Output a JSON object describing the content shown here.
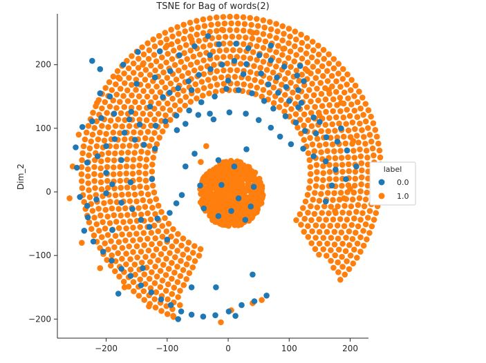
{
  "chart_data": {
    "type": "scatter",
    "title": "TSNE for Bag of words(2)",
    "xlabel": "",
    "ylabel": "Dim_2",
    "xlim": [
      -280,
      230
    ],
    "ylim": [
      -230,
      280
    ],
    "xticks": [
      -200,
      -100,
      0,
      100,
      200
    ],
    "yticks": [
      -200,
      -100,
      0,
      100,
      200
    ],
    "x_tick_labels": [
      "−200",
      "−100",
      "0",
      "100",
      "200"
    ],
    "y_tick_labels": [
      "−200",
      "−100",
      "0",
      "100",
      "200"
    ],
    "grid": false,
    "legend": {
      "title": "label",
      "placement": "center-right outside",
      "entries": [
        {
          "name": "0.0",
          "color": "#1f77b4"
        },
        {
          "name": "1.0",
          "color": "#ff7f0e"
        }
      ]
    },
    "series": [
      {
        "name": "0.0",
        "color": "#1f77b4",
        "points": [
          [
            -223,
            206
          ],
          [
            -210,
            193
          ],
          [
            -172,
            200
          ],
          [
            -148,
            220
          ],
          [
            -112,
            221
          ],
          [
            -55,
            229
          ],
          [
            -33,
            245
          ],
          [
            -15,
            232
          ],
          [
            13,
            233
          ],
          [
            33,
            226
          ],
          [
            51,
            215
          ],
          [
            70,
            207
          ],
          [
            92,
            197
          ],
          [
            113,
            183
          ],
          [
            124,
            174
          ],
          [
            118,
            198
          ],
          [
            -210,
            155
          ],
          [
            -194,
            150
          ],
          [
            -159,
            126
          ],
          [
            -128,
            134
          ],
          [
            -107,
            149
          ],
          [
            -96,
            156
          ],
          [
            -82,
            163
          ],
          [
            -65,
            174
          ],
          [
            -48,
            184
          ],
          [
            -29,
            193
          ],
          [
            -10,
            200
          ],
          [
            10,
            206
          ],
          [
            30,
            201
          ],
          [
            54,
            186
          ],
          [
            66,
            169
          ],
          [
            82,
            156
          ],
          [
            100,
            143
          ],
          [
            115,
            133
          ],
          [
            140,
            117
          ],
          [
            -239,
            102
          ],
          [
            -223,
            111
          ],
          [
            -208,
            116
          ],
          [
            -187,
            123
          ],
          [
            -162,
            114
          ],
          [
            -145,
            106
          ],
          [
            -119,
            104
          ],
          [
            -103,
            111
          ],
          [
            -85,
            120
          ],
          [
            -64,
            128
          ],
          [
            -44,
            141
          ],
          [
            -22,
            150
          ],
          [
            -3,
            162
          ],
          [
            17,
            160
          ],
          [
            39,
            155
          ],
          [
            59,
            143
          ],
          [
            74,
            131
          ],
          [
            94,
            119
          ],
          [
            111,
            109
          ],
          [
            126,
            96
          ],
          [
            144,
            92
          ],
          [
            161,
            86
          ],
          [
            179,
            79
          ],
          [
            195,
            65
          ],
          [
            -248,
            38
          ],
          [
            -231,
            46
          ],
          [
            -214,
            56
          ],
          [
            -200,
            72
          ],
          [
            -186,
            83
          ],
          [
            -170,
            93
          ],
          [
            -153,
            82
          ],
          [
            -138,
            74
          ],
          [
            -120,
            68
          ],
          [
            -84,
            97
          ],
          [
            -70,
            107
          ],
          [
            -49,
            121
          ],
          [
            -24,
            114
          ],
          [
            2,
            125
          ],
          [
            29,
            123
          ],
          [
            50,
            113
          ],
          [
            70,
            101
          ],
          [
            85,
            87
          ],
          [
            103,
            75
          ],
          [
            123,
            68
          ],
          [
            140,
            56
          ],
          [
            160,
            48
          ],
          [
            176,
            35
          ],
          [
            193,
            20
          ],
          [
            -243,
            -8
          ],
          [
            -231,
            -22
          ],
          [
            -216,
            -12
          ],
          [
            -200,
            -2
          ],
          [
            -190,
            12
          ],
          [
            -175,
            -17
          ],
          [
            -157,
            -27
          ],
          [
            -143,
            -44
          ],
          [
            -129,
            -55
          ],
          [
            -116,
            -42
          ],
          [
            -96,
            -33
          ],
          [
            -85,
            -18
          ],
          [
            -76,
            -5
          ],
          [
            -236,
            -61
          ],
          [
            -221,
            -78
          ],
          [
            -205,
            -94
          ],
          [
            -191,
            -108
          ],
          [
            -175,
            -121
          ],
          [
            -160,
            -132
          ],
          [
            -143,
            -147
          ],
          [
            -126,
            -158
          ],
          [
            -110,
            -169
          ],
          [
            -94,
            -178
          ],
          [
            -77,
            -188
          ],
          [
            -60,
            -193
          ],
          [
            -41,
            -196
          ],
          [
            -21,
            -194
          ],
          [
            1,
            -188
          ],
          [
            22,
            -178
          ],
          [
            43,
            -172
          ],
          [
            63,
            -163
          ],
          [
            12,
            -195
          ],
          [
            -82,
            -200
          ],
          [
            37,
            -23
          ],
          [
            42,
            8
          ],
          [
            -46,
            10
          ],
          [
            -40,
            -26
          ],
          [
            10,
            40
          ],
          [
            -16,
            -38
          ],
          [
            28,
            -44
          ],
          [
            -16,
            50
          ],
          [
            -60,
            160
          ],
          [
            -30,
            123
          ],
          [
            30,
            67
          ],
          [
            17,
            -10
          ],
          [
            -11,
            11
          ],
          [
            5,
            -30
          ],
          [
            160,
            -15
          ],
          [
            -190,
            -60
          ],
          [
            -200,
            30
          ],
          [
            -125,
            20
          ],
          [
            150,
            110
          ],
          [
            120,
            140
          ],
          [
            -150,
            170
          ],
          [
            70,
            230
          ],
          [
            -95,
            190
          ],
          [
            -180,
            -160
          ],
          [
            -140,
            -120
          ],
          [
            -100,
            -75
          ],
          [
            -60,
            -150
          ],
          [
            -20,
            -150
          ],
          [
            40,
            -130
          ],
          [
            185,
            100
          ],
          [
            170,
            10
          ],
          [
            210,
            40
          ],
          [
            -250,
            70
          ],
          [
            -230,
            -40
          ],
          [
            -55,
            60
          ],
          [
            -70,
            40
          ],
          [
            0,
            175
          ],
          [
            25,
            185
          ],
          [
            80,
            180
          ],
          [
            -120,
            180
          ],
          [
            -80,
            215
          ],
          [
            -30,
            215
          ],
          [
            95,
            165
          ],
          [
            115,
            160
          ],
          [
            -175,
            50
          ],
          [
            -160,
            15
          ]
        ]
      },
      {
        "name": "1.0",
        "color": "#ff7f0e",
        "generator": "annulus-and-core",
        "points": [
          [
            -36,
            72
          ],
          [
            -45,
            47
          ],
          [
            5,
            -186
          ],
          [
            -12,
            -205
          ],
          [
            40,
            -175
          ],
          [
            55,
            -170
          ],
          [
            175,
            -30
          ],
          [
            190,
            -10
          ],
          [
            200,
            5
          ],
          [
            205,
            80
          ],
          [
            150,
            120
          ],
          [
            -260,
            -10
          ],
          [
            -255,
            40
          ],
          [
            -245,
            90
          ],
          [
            -215,
            140
          ],
          [
            -180,
            180
          ],
          [
            -140,
            200
          ],
          [
            -100,
            230
          ],
          [
            -60,
            240
          ],
          [
            -10,
            255
          ],
          [
            40,
            250
          ],
          [
            90,
            225
          ],
          [
            130,
            190
          ],
          [
            165,
            160
          ],
          [
            185,
            140
          ],
          [
            -240,
            -80
          ],
          [
            -210,
            -120
          ],
          [
            -170,
            -150
          ],
          [
            -130,
            -180
          ],
          [
            -90,
            -195
          ]
        ]
      }
    ]
  }
}
